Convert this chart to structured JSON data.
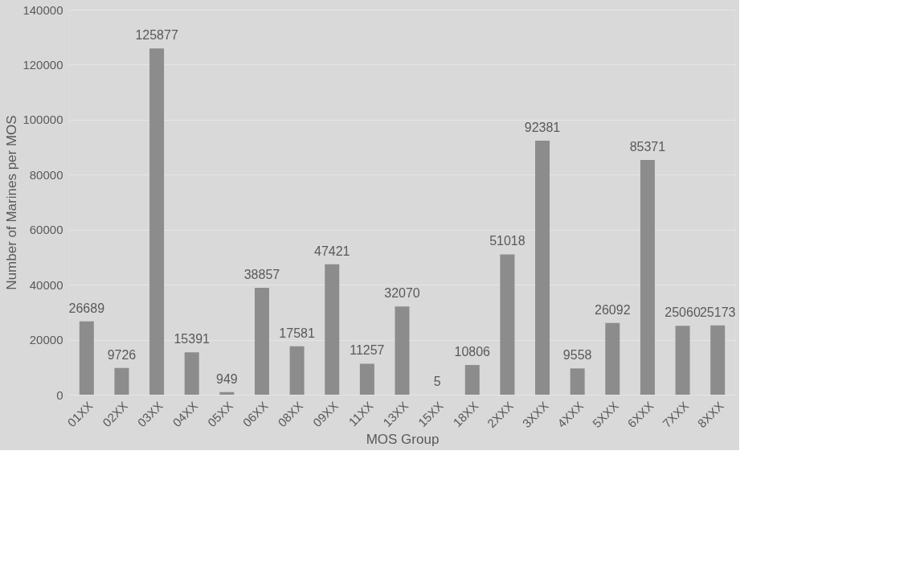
{
  "chart_data": {
    "type": "bar",
    "xlabel": "MOS Group",
    "ylabel": "Number of Marines per MOS",
    "categories": [
      "01XX",
      "02XX",
      "03XX",
      "04XX",
      "05XX",
      "06XX",
      "08XX",
      "09XX",
      "11XX",
      "13XX",
      "15XX",
      "18XX",
      "2XXX",
      "3XXX",
      "4XXX",
      "5XXX",
      "6XXX",
      "7XXX",
      "8XXX"
    ],
    "values": [
      26689,
      9726,
      125877,
      15391,
      949,
      38857,
      17581,
      47421,
      11257,
      32070,
      5,
      10806,
      51018,
      92381,
      9558,
      26092,
      85371,
      25060,
      25173
    ],
    "color": "#8c8c8c",
    "ylim": [
      0,
      140000
    ],
    "yticks": [
      0,
      20000,
      40000,
      60000,
      80000,
      100000,
      120000,
      140000
    ],
    "grid": "y",
    "data_labels": true
  }
}
